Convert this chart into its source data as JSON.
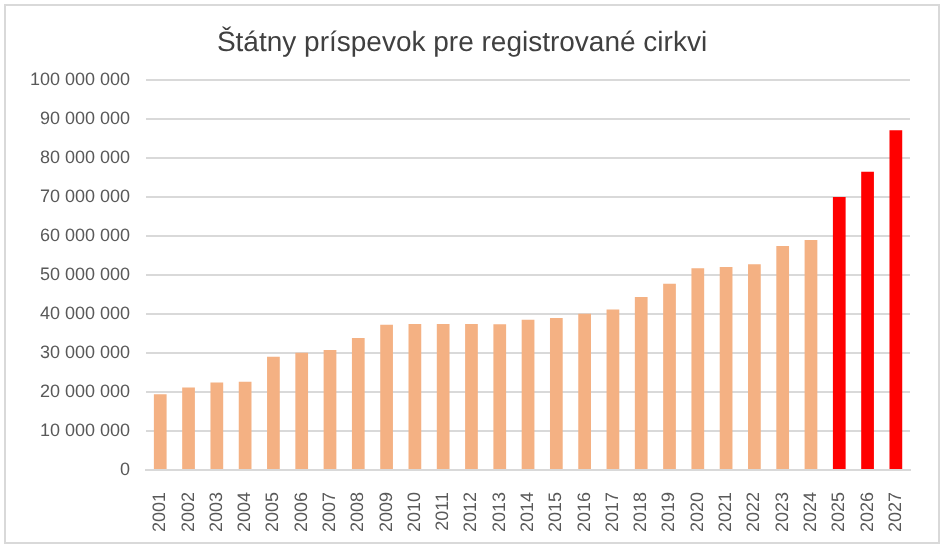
{
  "chart_data": {
    "type": "bar",
    "title": "Štátny príspevok pre registrované cirkvi",
    "categories": [
      "2001",
      "2002",
      "2003",
      "2004",
      "2005",
      "2006",
      "2007",
      "2008",
      "2009",
      "2010",
      "2011",
      "2012",
      "2013",
      "2014",
      "2015",
      "2016",
      "2017",
      "2018",
      "2019",
      "2020",
      "2021",
      "2022",
      "2023",
      "2024",
      "2025",
      "2026",
      "2027"
    ],
    "values": [
      19400000,
      21100000,
      22400000,
      22600000,
      29000000,
      30000000,
      30700000,
      33800000,
      37200000,
      37400000,
      37400000,
      37400000,
      37300000,
      38500000,
      38900000,
      40000000,
      41100000,
      44300000,
      47700000,
      51700000,
      52000000,
      52700000,
      57400000,
      58900000,
      69900000,
      76400000,
      87000000
    ],
    "colors": [
      "#f4b183",
      "#f4b183",
      "#f4b183",
      "#f4b183",
      "#f4b183",
      "#f4b183",
      "#f4b183",
      "#f4b183",
      "#f4b183",
      "#f4b183",
      "#f4b183",
      "#f4b183",
      "#f4b183",
      "#f4b183",
      "#f4b183",
      "#f4b183",
      "#f4b183",
      "#f4b183",
      "#f4b183",
      "#f4b183",
      "#f4b183",
      "#f4b183",
      "#f4b183",
      "#f4b183",
      "#ff0000",
      "#ff0000",
      "#ff0000"
    ],
    "ylim": [
      0,
      100000000
    ],
    "yticks": [
      0,
      {
        "value": 10000000,
        "label": "10 000 000"
      },
      {
        "value": 20000000,
        "label": "20 000 000"
      },
      {
        "value": 30000000,
        "label": "30 000 000"
      },
      {
        "value": 40000000,
        "label": "40 000 000"
      },
      {
        "value": 50000000,
        "label": "50 000 000"
      },
      {
        "value": 60000000,
        "label": "60 000 000"
      },
      {
        "value": 70000000,
        "label": "70 000 000"
      },
      {
        "value": 80000000,
        "label": "80 000 000"
      },
      {
        "value": 90000000,
        "label": "90 000 000"
      },
      {
        "value": 100000000,
        "label": "100 000 000"
      }
    ],
    "grid": "y"
  }
}
